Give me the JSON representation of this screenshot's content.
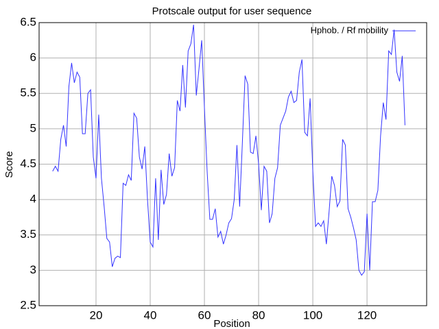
{
  "chart_data": {
    "type": "line",
    "title": "Protscale  output for user sequence",
    "xlabel": "Position",
    "ylabel": "Score",
    "x": [
      4,
      5,
      6,
      7,
      8,
      9,
      10,
      11,
      12,
      13,
      14,
      15,
      16,
      17,
      18,
      19,
      20,
      21,
      22,
      23,
      24,
      25,
      26,
      27,
      28,
      29,
      30,
      31,
      32,
      33,
      34,
      35,
      36,
      37,
      38,
      39,
      40,
      41,
      42,
      43,
      44,
      45,
      46,
      47,
      48,
      49,
      50,
      51,
      52,
      53,
      54,
      55,
      56,
      57,
      58,
      59,
      60,
      61,
      62,
      63,
      64,
      65,
      66,
      67,
      68,
      69,
      70,
      71,
      72,
      73,
      74,
      75,
      76,
      77,
      78,
      79,
      80,
      81,
      82,
      83,
      84,
      85,
      86,
      87,
      88,
      89,
      90,
      91,
      92,
      93,
      94,
      95,
      96,
      97,
      98,
      99,
      100,
      101,
      102,
      103,
      104,
      105,
      106,
      107,
      108,
      109,
      110,
      111,
      112,
      113,
      114,
      115,
      116,
      117,
      118,
      119,
      120,
      121,
      122,
      123,
      124,
      125,
      126,
      127,
      128,
      129,
      130,
      131,
      132,
      133,
      134
    ],
    "series": [
      {
        "name": "Hphob.  / Rf  mobility",
        "color": "#3333ff",
        "values": [
          4.4,
          4.47,
          4.4,
          4.85,
          5.05,
          4.75,
          5.6,
          5.93,
          5.65,
          5.8,
          5.73,
          4.93,
          4.93,
          5.5,
          5.55,
          4.6,
          4.3,
          5.2,
          4.3,
          3.9,
          3.45,
          3.4,
          3.05,
          3.17,
          3.2,
          3.18,
          4.23,
          4.2,
          4.35,
          4.27,
          5.22,
          5.15,
          4.6,
          4.43,
          4.75,
          4.0,
          3.4,
          3.33,
          4.3,
          3.43,
          4.42,
          3.93,
          4.07,
          4.65,
          4.33,
          4.45,
          5.4,
          5.25,
          5.9,
          5.3,
          6.1,
          6.2,
          6.47,
          5.47,
          5.85,
          6.25,
          5.3,
          4.4,
          3.72,
          3.72,
          3.87,
          3.47,
          3.55,
          3.37,
          3.5,
          3.67,
          3.73,
          4.0,
          4.77,
          3.9,
          4.8,
          5.75,
          5.63,
          4.67,
          4.65,
          4.9,
          4.5,
          3.85,
          4.47,
          4.4,
          3.67,
          3.8,
          4.3,
          4.45,
          5.05,
          5.15,
          5.25,
          5.45,
          5.53,
          5.37,
          5.4,
          5.8,
          5.98,
          4.95,
          4.9,
          5.43,
          4.4,
          3.62,
          3.67,
          3.62,
          3.7,
          3.37,
          3.83,
          4.33,
          4.2,
          3.9,
          3.98,
          4.85,
          4.77,
          3.87,
          3.75,
          3.6,
          3.43,
          3.0,
          2.93,
          2.98,
          3.8,
          3.0,
          3.97,
          3.97,
          4.13,
          4.9,
          5.37,
          5.13,
          6.1,
          6.05,
          6.4,
          5.8,
          5.67,
          6.03,
          5.05
        ]
      }
    ],
    "xlim": [
      -1,
      142
    ],
    "xticks": [
      20,
      40,
      60,
      80,
      100,
      120
    ],
    "ylim": [
      2.5,
      6.5
    ],
    "yticks": [
      2.5,
      3,
      3.5,
      4,
      4.5,
      5,
      5.5,
      6,
      6.5
    ],
    "grid": true,
    "legend": "upper right"
  }
}
